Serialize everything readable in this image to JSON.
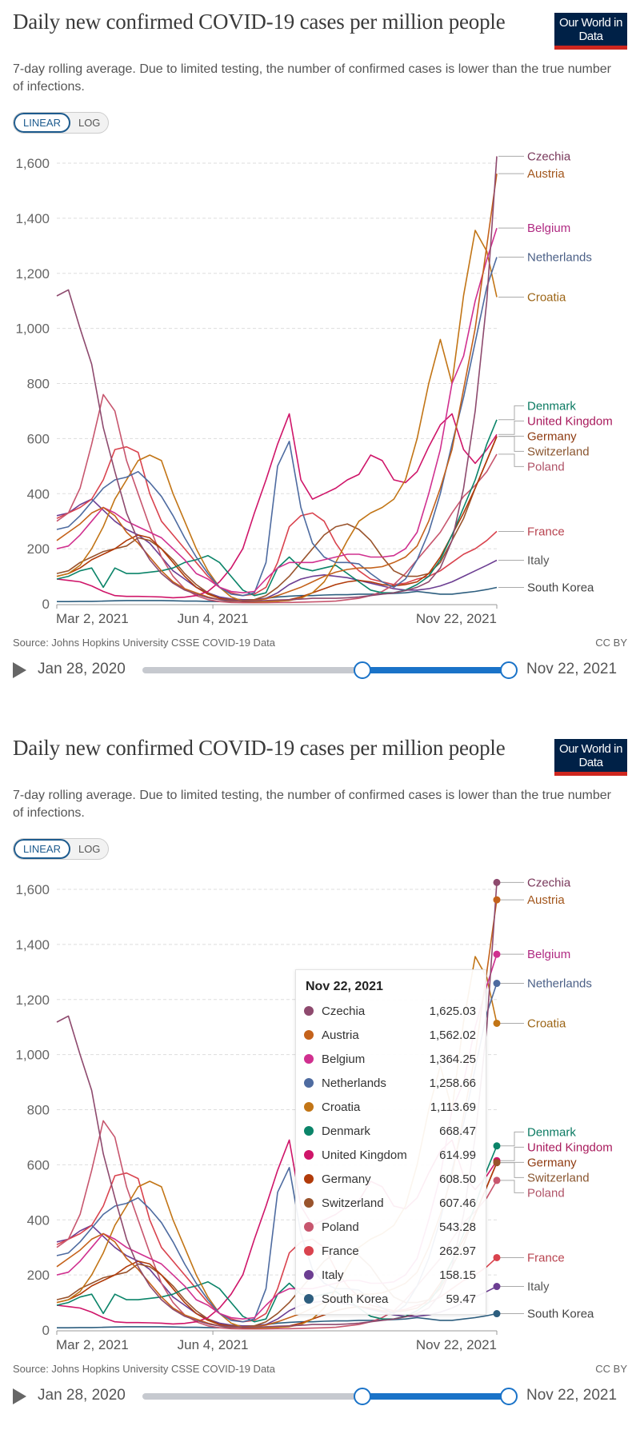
{
  "header": {
    "title": "Daily new confirmed COVID-19 cases per million people",
    "subtitle": "7-day rolling average. Due to limited testing, the number of confirmed cases is lower than the true number of infections.",
    "logo_text": "Our World in Data"
  },
  "toggle": {
    "linear": "LINEAR",
    "log": "LOG",
    "active": "linear"
  },
  "footer": {
    "source": "Source: Johns Hopkins University CSSE COVID-19 Data",
    "license": "CC BY"
  },
  "timeline": {
    "start_label": "Jan 28, 2020",
    "end_label": "Nov 22, 2021",
    "range_start": "2020-01-28",
    "range_end": "2021-11-22",
    "selected_start": "2021-03-02",
    "selected_end": "2021-11-22"
  },
  "tooltip": {
    "date": "Nov 22, 2021",
    "rows": [
      {
        "name": "Czechia",
        "value": "1,625.03"
      },
      {
        "name": "Austria",
        "value": "1,562.02"
      },
      {
        "name": "Belgium",
        "value": "1,364.25"
      },
      {
        "name": "Netherlands",
        "value": "1,258.66"
      },
      {
        "name": "Croatia",
        "value": "1,113.69"
      },
      {
        "name": "Denmark",
        "value": "668.47"
      },
      {
        "name": "United Kingdom",
        "value": "614.99"
      },
      {
        "name": "Germany",
        "value": "608.50"
      },
      {
        "name": "Switzerland",
        "value": "607.46"
      },
      {
        "name": "Poland",
        "value": "543.28"
      },
      {
        "name": "France",
        "value": "262.97"
      },
      {
        "name": "Italy",
        "value": "158.15"
      },
      {
        "name": "South Korea",
        "value": "59.47"
      }
    ]
  },
  "chart_data": {
    "type": "line",
    "scale": "linear",
    "grid": "horizontal dashed",
    "ylim": [
      0,
      1600
    ],
    "xlim": [
      "2021-03-02",
      "2021-11-22"
    ],
    "yticks": [
      {
        "value": 0,
        "label": "0"
      },
      {
        "value": 200,
        "label": "200"
      },
      {
        "value": 400,
        "label": "400"
      },
      {
        "value": 600,
        "label": "600"
      },
      {
        "value": 800,
        "label": "800"
      },
      {
        "value": 1000,
        "label": "1,000"
      },
      {
        "value": 1200,
        "label": "1,200"
      },
      {
        "value": 1400,
        "label": "1,400"
      },
      {
        "value": 1600,
        "label": "1,600"
      }
    ],
    "xticks": [
      {
        "date": "2021-03-02",
        "label": "Mar 2, 2021"
      },
      {
        "date": "2021-06-04",
        "label": "Jun 4, 2021"
      },
      {
        "date": "2021-11-22",
        "label": "Nov 22, 2021"
      }
    ],
    "legend": "right-end labels",
    "x": [
      "2021-03-02",
      "2021-03-09",
      "2021-03-16",
      "2021-03-23",
      "2021-03-30",
      "2021-04-06",
      "2021-04-13",
      "2021-04-20",
      "2021-04-27",
      "2021-05-04",
      "2021-05-11",
      "2021-05-18",
      "2021-05-25",
      "2021-06-01",
      "2021-06-08",
      "2021-06-15",
      "2021-06-22",
      "2021-06-29",
      "2021-07-06",
      "2021-07-13",
      "2021-07-20",
      "2021-07-27",
      "2021-08-03",
      "2021-08-10",
      "2021-08-17",
      "2021-08-24",
      "2021-08-31",
      "2021-09-07",
      "2021-09-14",
      "2021-09-21",
      "2021-09-28",
      "2021-10-05",
      "2021-10-12",
      "2021-10-19",
      "2021-10-26",
      "2021-11-02",
      "2021-11-09",
      "2021-11-16",
      "2021-11-22"
    ],
    "series": [
      {
        "name": "Czechia",
        "color": "#8e4a6e",
        "label_color": "#7a3a5c",
        "values": [
          1118,
          1140,
          1000,
          870,
          640,
          480,
          330,
          230,
          160,
          110,
          75,
          50,
          35,
          22,
          15,
          12,
          10,
          10,
          12,
          14,
          15,
          17,
          20,
          20,
          20,
          22,
          25,
          30,
          35,
          40,
          48,
          60,
          80,
          130,
          230,
          420,
          700,
          1100,
          1625.03
        ]
      },
      {
        "name": "Austria",
        "color": "#c4621b",
        "label_color": "#a2561c",
        "values": [
          230,
          260,
          290,
          330,
          350,
          320,
          260,
          220,
          170,
          120,
          80,
          55,
          40,
          25,
          15,
          10,
          10,
          12,
          18,
          30,
          45,
          60,
          80,
          100,
          115,
          125,
          130,
          130,
          135,
          150,
          170,
          210,
          300,
          420,
          560,
          780,
          1000,
          1300,
          1562.02
        ]
      },
      {
        "name": "Belgium",
        "color": "#d0308f",
        "label_color": "#b02a82",
        "values": [
          200,
          210,
          250,
          300,
          350,
          330,
          300,
          280,
          260,
          240,
          200,
          160,
          110,
          90,
          60,
          45,
          40,
          45,
          90,
          130,
          150,
          150,
          150,
          160,
          170,
          180,
          180,
          170,
          170,
          175,
          200,
          260,
          400,
          560,
          800,
          900,
          1100,
          1250,
          1364.25
        ]
      },
      {
        "name": "Netherlands",
        "color": "#4e6ba0",
        "label_color": "#4a5f86",
        "values": [
          270,
          280,
          320,
          370,
          420,
          450,
          460,
          480,
          440,
          390,
          320,
          240,
          170,
          110,
          60,
          35,
          30,
          40,
          150,
          500,
          590,
          350,
          220,
          170,
          150,
          150,
          145,
          110,
          80,
          60,
          90,
          160,
          260,
          400,
          580,
          750,
          950,
          1150,
          1258.66
        ]
      },
      {
        "name": "Croatia",
        "color": "#c27516",
        "label_color": "#9c6516",
        "values": [
          100,
          110,
          140,
          200,
          280,
          380,
          450,
          520,
          540,
          520,
          400,
          300,
          200,
          120,
          60,
          25,
          10,
          8,
          8,
          10,
          12,
          20,
          40,
          80,
          150,
          230,
          300,
          330,
          350,
          380,
          450,
          600,
          800,
          960,
          800,
          1120,
          1356,
          1280,
          1113.69
        ]
      },
      {
        "name": "Denmark",
        "color": "#0b8469",
        "label_color": "#0b7a62",
        "values": [
          90,
          100,
          120,
          130,
          60,
          130,
          110,
          110,
          115,
          120,
          130,
          150,
          160,
          175,
          150,
          100,
          50,
          30,
          40,
          130,
          170,
          130,
          120,
          130,
          140,
          110,
          80,
          50,
          40,
          40,
          50,
          70,
          100,
          160,
          250,
          350,
          450,
          580,
          668.47
        ]
      },
      {
        "name": "United Kingdom",
        "color": "#cf1569",
        "label_color": "#a81a5c",
        "values": [
          90,
          85,
          80,
          65,
          45,
          30,
          27,
          27,
          26,
          25,
          22,
          24,
          30,
          45,
          80,
          130,
          200,
          330,
          450,
          580,
          690,
          450,
          380,
          400,
          420,
          450,
          470,
          540,
          520,
          450,
          440,
          480,
          570,
          650,
          690,
          560,
          510,
          560,
          614.99
        ]
      },
      {
        "name": "Germany",
        "color": "#b13b0a",
        "label_color": "#8e3a10",
        "values": [
          100,
          110,
          130,
          160,
          180,
          200,
          230,
          250,
          240,
          200,
          150,
          100,
          60,
          35,
          20,
          12,
          8,
          7,
          8,
          10,
          15,
          25,
          40,
          55,
          70,
          80,
          85,
          80,
          70,
          65,
          70,
          80,
          110,
          170,
          250,
          330,
          420,
          520,
          608.5
        ]
      },
      {
        "name": "Switzerland",
        "color": "#99532c",
        "label_color": "#8a5630",
        "values": [
          110,
          120,
          150,
          170,
          190,
          200,
          210,
          240,
          230,
          200,
          160,
          110,
          70,
          40,
          20,
          15,
          12,
          15,
          30,
          60,
          100,
          150,
          200,
          250,
          280,
          290,
          270,
          230,
          170,
          120,
          100,
          100,
          110,
          150,
          230,
          310,
          420,
          520,
          607.46
        ]
      },
      {
        "name": "Poland",
        "color": "#c7566e",
        "label_color": "#b05468",
        "values": [
          300,
          330,
          420,
          580,
          760,
          700,
          520,
          400,
          280,
          170,
          100,
          55,
          30,
          15,
          8,
          5,
          4,
          4,
          4,
          5,
          5,
          6,
          7,
          8,
          10,
          15,
          20,
          30,
          45,
          70,
          110,
          160,
          210,
          260,
          330,
          390,
          430,
          480,
          543.28
        ]
      },
      {
        "name": "France",
        "color": "#d9434e",
        "label_color": "#b84450",
        "values": [
          310,
          330,
          350,
          380,
          450,
          560,
          570,
          550,
          400,
          300,
          250,
          200,
          150,
          100,
          60,
          40,
          30,
          35,
          60,
          150,
          280,
          320,
          330,
          300,
          220,
          160,
          120,
          90,
          80,
          70,
          75,
          90,
          100,
          120,
          150,
          180,
          200,
          230,
          262.97
        ]
      },
      {
        "name": "Italy",
        "color": "#6c3e92",
        "label_color": "#555",
        "values": [
          320,
          330,
          360,
          380,
          340,
          300,
          270,
          250,
          220,
          170,
          120,
          90,
          60,
          40,
          25,
          18,
          15,
          15,
          20,
          40,
          70,
          90,
          100,
          105,
          100,
          95,
          85,
          75,
          65,
          55,
          50,
          50,
          55,
          65,
          80,
          100,
          120,
          140,
          158.15
        ]
      },
      {
        "name": "South Korea",
        "color": "#2d5e7f",
        "label_color": "#444",
        "values": [
          8,
          8,
          9,
          9,
          10,
          11,
          12,
          12,
          12,
          12,
          11,
          10,
          10,
          9,
          8,
          9,
          10,
          15,
          20,
          25,
          28,
          30,
          30,
          32,
          33,
          33,
          35,
          35,
          36,
          38,
          40,
          45,
          40,
          35,
          35,
          40,
          45,
          52,
          59.47
        ]
      }
    ]
  }
}
